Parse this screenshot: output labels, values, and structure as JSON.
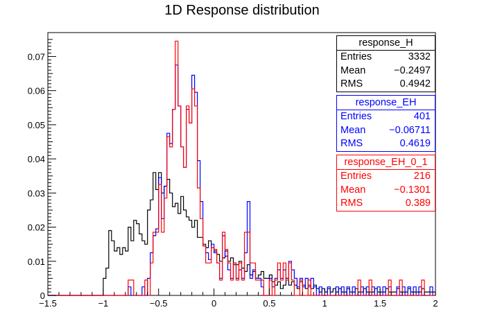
{
  "chart_data": {
    "type": "histogram",
    "title": "1D Response distribution",
    "xlabel": "",
    "ylabel": "",
    "xlim": [
      -1.5,
      2.0
    ],
    "ylim": [
      0,
      0.077
    ],
    "bin_width": 0.025,
    "x_ticks": [
      -1.5,
      -1,
      -0.5,
      0,
      0.5,
      1,
      1.5,
      2
    ],
    "x_tick_labels": [
      "−1.5",
      "−1",
      "−0.5",
      "0",
      "0.5",
      "1",
      "1.5",
      "2"
    ],
    "y_ticks": [
      0,
      0.01,
      0.02,
      0.03,
      0.04,
      0.05,
      0.06,
      0.07
    ],
    "y_tick_labels": [
      "0",
      "0.01",
      "0.02",
      "0.03",
      "0.04",
      "0.05",
      "0.06",
      "0.07"
    ],
    "grid": false,
    "legend": "top-right",
    "series": [
      {
        "name": "response_H",
        "color": "#000000",
        "entries": "3332",
        "mean": "−0.2497",
        "rms": "0.4942",
        "segments": [
          [
            -1.5,
            0
          ],
          [
            -1.0,
            0.005
          ],
          [
            -0.975,
            0.008
          ],
          [
            -0.95,
            0.019
          ],
          [
            -0.925,
            0.016
          ],
          [
            -0.9,
            0.013
          ],
          [
            -0.875,
            0.014
          ],
          [
            -0.85,
            0.012
          ],
          [
            -0.825,
            0.014
          ],
          [
            -0.8,
            0.013
          ],
          [
            -0.775,
            0.02
          ],
          [
            -0.75,
            0.016
          ],
          [
            -0.725,
            0.022
          ],
          [
            -0.7,
            0.021
          ],
          [
            -0.675,
            0.018
          ],
          [
            -0.65,
            0.016
          ],
          [
            -0.625,
            0.015
          ],
          [
            -0.6,
            0.025
          ],
          [
            -0.575,
            0.028
          ],
          [
            -0.55,
            0.036
          ],
          [
            -0.525,
            0.031
          ],
          [
            -0.5,
            0.036
          ],
          [
            -0.475,
            0.03
          ],
          [
            -0.45,
            0.032
          ],
          [
            -0.425,
            0.034
          ],
          [
            -0.4,
            0.03
          ],
          [
            -0.375,
            0.026
          ],
          [
            -0.35,
            0.027
          ],
          [
            -0.325,
            0.024
          ],
          [
            -0.3,
            0.029
          ],
          [
            -0.275,
            0.025
          ],
          [
            -0.25,
            0.023
          ],
          [
            -0.225,
            0.022
          ],
          [
            -0.2,
            0.02
          ],
          [
            -0.175,
            0.022
          ],
          [
            -0.15,
            0.017
          ],
          [
            -0.125,
            0.017
          ],
          [
            -0.1,
            0.015
          ],
          [
            -0.075,
            0.014
          ],
          [
            -0.05,
            0.016
          ],
          [
            -0.025,
            0.014
          ],
          [
            0.0,
            0.013
          ],
          [
            0.025,
            0.012
          ],
          [
            0.05,
            0.01
          ],
          [
            0.075,
            0.011
          ],
          [
            0.1,
            0.013
          ],
          [
            0.125,
            0.01
          ],
          [
            0.15,
            0.011
          ],
          [
            0.175,
            0.009
          ],
          [
            0.2,
            0.009
          ],
          [
            0.225,
            0.01
          ],
          [
            0.25,
            0.008
          ],
          [
            0.275,
            0.007
          ],
          [
            0.3,
            0.009
          ],
          [
            0.325,
            0.006
          ],
          [
            0.35,
            0.007
          ],
          [
            0.375,
            0.005
          ],
          [
            0.4,
            0.006
          ],
          [
            0.425,
            0.007
          ],
          [
            0.45,
            0.005
          ],
          [
            0.475,
            0.005
          ],
          [
            0.5,
            0.006
          ],
          [
            0.525,
            0.004
          ],
          [
            0.55,
            0.003
          ],
          [
            0.575,
            0.004
          ],
          [
            0.6,
            0.002
          ],
          [
            0.625,
            0.003
          ],
          [
            0.65,
            0.005
          ],
          [
            0.675,
            0.003
          ],
          [
            0.7,
            0.004
          ],
          [
            0.725,
            0.003
          ],
          [
            0.75,
            0.002
          ],
          [
            0.775,
            0.004
          ],
          [
            0.8,
            0.003
          ],
          [
            0.825,
            0.002
          ],
          [
            0.85,
            0.003
          ],
          [
            0.875,
            0.002
          ],
          [
            0.9,
            0.003
          ],
          [
            0.925,
            0.002
          ],
          [
            0.95,
            0.001
          ],
          [
            0.975,
            0.002
          ],
          [
            1.0,
            0.001
          ],
          [
            1.025,
            0.002
          ],
          [
            1.05,
            0.001
          ],
          [
            1.075,
            0.002
          ],
          [
            1.1,
            0.001
          ],
          [
            1.125,
            0.002
          ],
          [
            1.15,
            0.001
          ],
          [
            1.175,
            0.001
          ],
          [
            1.2,
            0.002
          ],
          [
            1.225,
            0.001
          ],
          [
            1.25,
            0.001
          ],
          [
            1.275,
            0.002
          ],
          [
            1.3,
            0.001
          ],
          [
            1.325,
            0.001
          ],
          [
            1.35,
            0.002
          ],
          [
            1.375,
            0.001
          ],
          [
            1.4,
            0.001
          ],
          [
            1.425,
            0.001
          ],
          [
            1.45,
            0.002
          ],
          [
            1.475,
            0.001
          ],
          [
            1.5,
            0.001
          ],
          [
            1.55,
            0.002
          ],
          [
            1.575,
            0.001
          ],
          [
            1.625,
            0.001
          ],
          [
            1.65,
            0.002
          ],
          [
            1.675,
            0.001
          ],
          [
            1.725,
            0.001
          ],
          [
            1.75,
            0.002
          ],
          [
            1.775,
            0.001
          ],
          [
            1.825,
            0.001
          ],
          [
            1.85,
            0.001
          ],
          [
            1.875,
            0.002
          ],
          [
            1.9,
            0.001
          ],
          [
            1.95,
            0.001
          ],
          [
            2.0,
            0
          ]
        ]
      },
      {
        "name": "response_EH",
        "color": "#0000ff",
        "entries": "401",
        "mean": "−0.06711",
        "rms": "0.4619",
        "segments": [
          [
            -1.5,
            0
          ],
          [
            -0.775,
            0.0025
          ],
          [
            -0.75,
            0
          ],
          [
            -0.65,
            0.0025
          ],
          [
            -0.625,
            0
          ],
          [
            -0.6,
            0.005
          ],
          [
            -0.575,
            0.0125
          ],
          [
            -0.55,
            0.0175
          ],
          [
            -0.525,
            0.0195
          ],
          [
            -0.5,
            0.0345
          ],
          [
            -0.475,
            0.0225
          ],
          [
            -0.45,
            0.032
          ],
          [
            -0.425,
            0.0475
          ],
          [
            -0.4,
            0.0445
          ],
          [
            -0.375,
            0.0545
          ],
          [
            -0.35,
            0.0675
          ],
          [
            -0.325,
            0.0555
          ],
          [
            -0.3,
            0.0435
          ],
          [
            -0.275,
            0.0375
          ],
          [
            -0.25,
            0.0545
          ],
          [
            -0.225,
            0.0505
          ],
          [
            -0.2,
            0.0645
          ],
          [
            -0.175,
            0.0595
          ],
          [
            -0.15,
            0.0395
          ],
          [
            -0.125,
            0.0275
          ],
          [
            -0.1,
            0.0145
          ],
          [
            -0.075,
            0.0125
          ],
          [
            -0.05,
            0.0105
          ],
          [
            -0.025,
            0.015
          ],
          [
            0.0,
            0.0125
          ],
          [
            0.025,
            0.0095
          ],
          [
            0.05,
            0.005
          ],
          [
            0.075,
            0.0175
          ],
          [
            0.1,
            0.0115
          ],
          [
            0.125,
            0.0075
          ],
          [
            0.15,
            0.005
          ],
          [
            0.175,
            0.0095
          ],
          [
            0.2,
            0.005
          ],
          [
            0.225,
            0.0075
          ],
          [
            0.25,
            0.005
          ],
          [
            0.275,
            0.0125
          ],
          [
            0.3,
            0.0275
          ],
          [
            0.325,
            0.005
          ],
          [
            0.35,
            0.0075
          ],
          [
            0.375,
            0.005
          ],
          [
            0.425,
            0.0025
          ],
          [
            0.45,
            0
          ],
          [
            0.5,
            0.005
          ],
          [
            0.525,
            0.0025
          ],
          [
            0.55,
            0.005
          ],
          [
            0.575,
            0.0075
          ],
          [
            0.6,
            0.005
          ],
          [
            0.625,
            0.0075
          ],
          [
            0.65,
            0.005
          ],
          [
            0.675,
            0.01
          ],
          [
            0.7,
            0.0075
          ],
          [
            0.725,
            0.005
          ],
          [
            0.75,
            0.0025
          ],
          [
            0.775,
            0.005
          ],
          [
            0.8,
            0.0025
          ],
          [
            0.825,
            0.005
          ],
          [
            0.85,
            0.0025
          ],
          [
            0.875,
            0.005
          ],
          [
            0.9,
            0.0025
          ],
          [
            0.925,
            0
          ],
          [
            0.95,
            0.0025
          ],
          [
            0.975,
            0
          ],
          [
            1.025,
            0.0025
          ],
          [
            1.05,
            0
          ],
          [
            1.1,
            0.0025
          ],
          [
            1.125,
            0
          ],
          [
            1.15,
            0.0025
          ],
          [
            1.175,
            0
          ],
          [
            1.2,
            0.0025
          ],
          [
            1.225,
            0
          ],
          [
            1.25,
            0.0025
          ],
          [
            1.275,
            0
          ],
          [
            1.325,
            0.0025
          ],
          [
            1.35,
            0
          ],
          [
            1.375,
            0.0025
          ],
          [
            1.4,
            0
          ],
          [
            1.425,
            0.0025
          ],
          [
            1.45,
            0
          ],
          [
            1.475,
            0.0025
          ],
          [
            1.5,
            0
          ],
          [
            1.525,
            0.0025
          ],
          [
            1.55,
            0
          ],
          [
            1.575,
            0.0025
          ],
          [
            1.6,
            0
          ],
          [
            1.65,
            0.0025
          ],
          [
            1.675,
            0
          ],
          [
            1.7,
            0.0025
          ],
          [
            1.725,
            0
          ],
          [
            1.75,
            0.0025
          ],
          [
            1.775,
            0
          ],
          [
            1.8,
            0.0025
          ],
          [
            1.825,
            0
          ],
          [
            1.85,
            0.0025
          ],
          [
            1.875,
            0
          ],
          [
            1.95,
            0.0025
          ],
          [
            1.975,
            0
          ],
          [
            2.0,
            0
          ]
        ]
      },
      {
        "name": "response_EH_0_1",
        "color": "#ff0000",
        "entries": "216",
        "mean": "−0.1301",
        "rms": "0.389",
        "segments": [
          [
            -1.5,
            0
          ],
          [
            -0.775,
            0.0045
          ],
          [
            -0.725,
            0
          ],
          [
            -0.625,
            0.0045
          ],
          [
            -0.6,
            0
          ],
          [
            -0.575,
            0.0095
          ],
          [
            -0.55,
            0.0185
          ],
          [
            -0.525,
            0.0185
          ],
          [
            -0.5,
            0.0325
          ],
          [
            -0.475,
            0.0185
          ],
          [
            -0.45,
            0.0285
          ],
          [
            -0.425,
            0.0465
          ],
          [
            -0.4,
            0.0435
          ],
          [
            -0.375,
            0.0545
          ],
          [
            -0.35,
            0.0745
          ],
          [
            -0.325,
            0.0555
          ],
          [
            -0.3,
            0.0435
          ],
          [
            -0.275,
            0.0375
          ],
          [
            -0.25,
            0.0555
          ],
          [
            -0.225,
            0.0505
          ],
          [
            -0.2,
            0.0605
          ],
          [
            -0.175,
            0.0555
          ],
          [
            -0.15,
            0.0315
          ],
          [
            -0.125,
            0.0225
          ],
          [
            -0.1,
            0.0145
          ],
          [
            -0.075,
            0.0095
          ],
          [
            -0.05,
            0.0095
          ],
          [
            -0.025,
            0.014
          ],
          [
            0.0,
            0.0135
          ],
          [
            0.025,
            0.0095
          ],
          [
            0.05,
            0.0045
          ],
          [
            0.075,
            0.0185
          ],
          [
            0.1,
            0.0135
          ],
          [
            0.125,
            0.0095
          ],
          [
            0.15,
            0.0045
          ],
          [
            0.175,
            0.0095
          ],
          [
            0.2,
            0.0045
          ],
          [
            0.225,
            0.0095
          ],
          [
            0.25,
            0.0045
          ],
          [
            0.275,
            0.0185
          ],
          [
            0.3,
            0.0185
          ],
          [
            0.325,
            0.0095
          ],
          [
            0.35,
            0.0095
          ],
          [
            0.375,
            0.0045
          ],
          [
            0.425,
            0.0045
          ],
          [
            0.45,
            0
          ],
          [
            0.5,
            0.0045
          ],
          [
            0.525,
            0
          ],
          [
            0.55,
            0.0045
          ],
          [
            0.575,
            0.0095
          ],
          [
            0.6,
            0.0045
          ],
          [
            0.625,
            0.0095
          ],
          [
            0.65,
            0.0045
          ],
          [
            0.675,
            0.0095
          ],
          [
            0.7,
            0.0045
          ],
          [
            0.725,
            0
          ],
          [
            0.775,
            0.0045
          ],
          [
            0.8,
            0
          ],
          [
            0.85,
            0.0045
          ],
          [
            0.875,
            0
          ],
          [
            1.3,
            0.0045
          ],
          [
            1.325,
            0
          ],
          [
            1.4,
            0.0045
          ],
          [
            1.425,
            0
          ],
          [
            1.575,
            0.0045
          ],
          [
            1.6,
            0
          ],
          [
            1.675,
            0.0045
          ],
          [
            1.7,
            0
          ],
          [
            1.875,
            0.0045
          ],
          [
            1.9,
            0
          ],
          [
            2.0,
            0
          ]
        ]
      }
    ]
  },
  "statboxes": {
    "black": {
      "title": "response_H",
      "entries_label": "Entries",
      "entries": "3332",
      "mean_label": "Mean",
      "mean": "−0.2497",
      "rms_label": "RMS",
      "rms": "0.4942"
    },
    "blue": {
      "title": "response_EH",
      "entries_label": "Entries",
      "entries": "401",
      "mean_label": "Mean",
      "mean": "−0.06711",
      "rms_label": "RMS",
      "rms": "0.4619"
    },
    "red": {
      "title": "response_EH_0_1",
      "entries_label": "Entries",
      "entries": "216",
      "mean_label": "Mean",
      "mean": "−0.1301",
      "rms_label": "RMS",
      "rms": "0.389"
    }
  }
}
